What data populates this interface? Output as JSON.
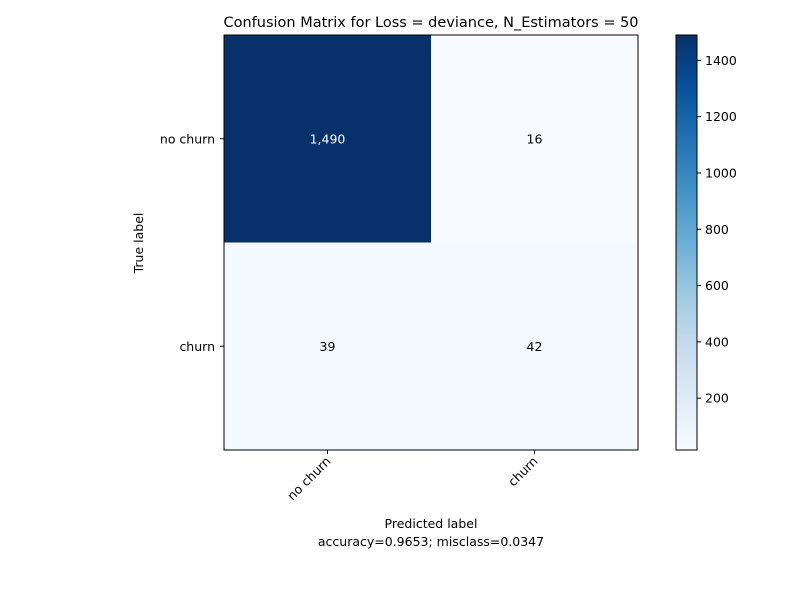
{
  "chart_data": {
    "type": "heatmap",
    "title": "Confusion Matrix for Loss = deviance, N_Estimators = 50",
    "xlabel": "Predicted label",
    "xlabel_sub": "accuracy=0.9653; misclass=0.0347",
    "ylabel": "True label",
    "x_categories": [
      "no churn",
      "churn"
    ],
    "y_categories": [
      "no churn",
      "churn"
    ],
    "values": [
      [
        1490,
        16
      ],
      [
        39,
        42
      ]
    ],
    "cell_labels": [
      [
        "1,490",
        "16"
      ],
      [
        "39",
        "42"
      ]
    ],
    "colormap": "Blues",
    "colorbar": {
      "range": [
        16,
        1490
      ],
      "ticks": [
        200,
        400,
        600,
        800,
        1000,
        1200,
        1400
      ],
      "tick_labels": [
        "200",
        "400",
        "600",
        "800",
        "1000",
        "1200",
        "1400"
      ]
    }
  }
}
